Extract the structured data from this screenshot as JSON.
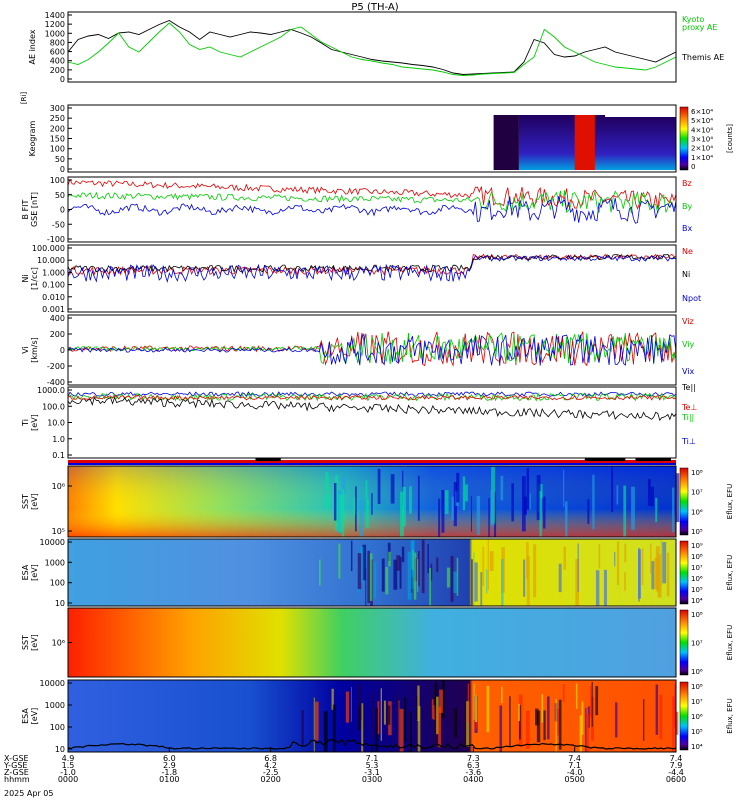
{
  "chart_data": {
    "type": "line",
    "title": "P5 (TH-A)",
    "date_label": "2025 Apr 05",
    "time_axis": {
      "row_labels": [
        "X-GSE",
        "Y-GSE",
        "Z-GSE",
        "hhmm"
      ],
      "ticks": [
        {
          "x_gse": "4.9",
          "y_gse": "1.5",
          "z_gse": "-1.0",
          "hhmm": "0000"
        },
        {
          "x_gse": "6.0",
          "y_gse": "2.9",
          "z_gse": "-1.8",
          "hhmm": "0100"
        },
        {
          "x_gse": "6.8",
          "y_gse": "4.2",
          "z_gse": "-2.5",
          "hhmm": "0200"
        },
        {
          "x_gse": "7.1",
          "y_gse": "5.3",
          "z_gse": "-3.1",
          "hhmm": "0300"
        },
        {
          "x_gse": "7.3",
          "y_gse": "6.3",
          "z_gse": "-3.6",
          "hhmm": "0400"
        },
        {
          "x_gse": "7.4",
          "y_gse": "7.1",
          "z_gse": "-4.0",
          "hhmm": "0500"
        },
        {
          "x_gse": "7.4",
          "y_gse": "7.9",
          "z_gse": "-4.4",
          "hhmm": "0600"
        }
      ]
    },
    "panels": [
      {
        "id": "ae",
        "ylabel": "AE index",
        "yticks": [
          "1400",
          "1200",
          "1000",
          "800",
          "600",
          "400",
          "200",
          "0"
        ],
        "ylim": [
          0,
          1400
        ],
        "legend": [
          {
            "name": "Kyoto",
            "color": "#00cc00"
          },
          {
            "name": "proxy AE",
            "color": "#00cc00"
          },
          {
            "name": "Themis AE",
            "color": "#000000"
          }
        ],
        "series": [
          {
            "name": "Themis AE",
            "color": "#000000",
            "x": [
              0.0,
              0.1,
              0.2,
              0.3,
              0.4,
              0.5,
              0.6,
              0.7,
              0.8,
              0.9,
              1.0,
              1.1,
              1.2,
              1.3,
              1.4,
              1.5,
              1.6,
              1.7,
              1.8,
              1.9,
              2.0,
              2.1,
              2.2,
              2.3,
              2.4,
              2.5,
              2.6,
              2.7,
              2.8,
              2.9,
              3.0,
              3.1,
              3.2,
              3.3,
              3.4,
              3.5,
              3.6,
              3.7,
              3.8,
              3.9,
              4.0,
              4.1,
              4.2,
              4.3,
              4.4,
              4.5,
              4.6,
              4.7,
              4.8,
              4.9,
              5.0,
              5.1,
              5.2,
              5.3,
              5.4,
              5.5,
              5.6,
              5.7,
              5.8,
              5.9,
              6.0
            ],
            "y": [
              600,
              850,
              920,
              950,
              870,
              980,
              1000,
              950,
              1050,
              1150,
              1230,
              1100,
              1000,
              850,
              1000,
              950,
              900,
              950,
              1000,
              980,
              950,
              1000,
              1050,
              980,
              900,
              780,
              650,
              600,
              550,
              500,
              450,
              420,
              400,
              380,
              350,
              330,
              300,
              250,
              180,
              150,
              160,
              170,
              180,
              190,
              200,
              400,
              850,
              780,
              550,
              500,
              520,
              600,
              650,
              700,
              600,
              550,
              500,
              450,
              400,
              500,
              600
            ]
          },
          {
            "name": "Kyoto proxy AE",
            "color": "#00cc00",
            "x": [
              0.0,
              0.1,
              0.2,
              0.3,
              0.4,
              0.5,
              0.6,
              0.7,
              0.8,
              0.9,
              1.0,
              1.1,
              1.2,
              1.3,
              1.4,
              1.5,
              1.6,
              1.7,
              1.8,
              1.9,
              2.0,
              2.1,
              2.2,
              2.3,
              2.4,
              2.5,
              2.6,
              2.7,
              2.8,
              2.9,
              3.0,
              3.1,
              3.2,
              3.3,
              3.4,
              3.5,
              3.6,
              3.7,
              3.8,
              3.9,
              4.0,
              4.1,
              4.2,
              4.3,
              4.4,
              4.5,
              4.6,
              4.7,
              4.8,
              4.9,
              5.0,
              5.1,
              5.2,
              5.3,
              5.4,
              5.5,
              5.6,
              5.7,
              5.8,
              5.9,
              6.0
            ],
            "y": [
              400,
              350,
              450,
              600,
              780,
              980,
              700,
              600,
              800,
              1000,
              1180,
              1000,
              750,
              650,
              700,
              600,
              550,
              500,
              600,
              700,
              800,
              900,
              1050,
              1100,
              950,
              800,
              700,
              600,
              500,
              450,
              420,
              380,
              350,
              300,
              280,
              260,
              240,
              200,
              150,
              130,
              140,
              160,
              170,
              180,
              190,
              350,
              500,
              1050,
              900,
              700,
              600,
              500,
              400,
              350,
              300,
              280,
              260,
              240,
              300,
              400,
              500
            ]
          }
        ]
      },
      {
        "id": "keogram",
        "ylabel": "Keogram",
        "yticks": [
          "300",
          "250",
          "200",
          "150",
          "100",
          "50",
          "0"
        ],
        "ylim": [
          0,
          300
        ],
        "extra_label": "[Ri]",
        "colorbar": {
          "label": "[counts]",
          "ticks": [
            "6×10⁴",
            "5×10⁴",
            "4×10⁴",
            "3×10⁴",
            "2×10⁴",
            "1×10⁴",
            "0"
          ]
        }
      },
      {
        "id": "bfield",
        "ylabel": "B FIT",
        "ylabel_sub": "GSE [nT]",
        "yticks": [
          "100",
          "50",
          "0",
          "-50",
          "-100"
        ],
        "ylim": [
          -100,
          100
        ],
        "legend": [
          {
            "name": "Bz",
            "color": "#e00000"
          },
          {
            "name": "By",
            "color": "#00cc00"
          },
          {
            "name": "Bx",
            "color": "#0000e0"
          }
        ]
      },
      {
        "id": "density",
        "ylabel": "Ni",
        "ylabel_sub": "[1/cc]",
        "yticks": [
          "100.000",
          "10.000",
          "1.000",
          "0.100",
          "0.010",
          "0.001"
        ],
        "scale": "log",
        "legend": [
          {
            "name": "Ne",
            "color": "#e00000"
          },
          {
            "name": "Ni",
            "color": "#000000"
          },
          {
            "name": "Npot",
            "color": "#0000e0"
          }
        ]
      },
      {
        "id": "velocity",
        "ylabel": "Vi",
        "ylabel_sub": "[km/s]",
        "yticks": [
          "400",
          "200",
          "0",
          "-200",
          "-400"
        ],
        "ylim": [
          -500,
          450
        ],
        "legend": [
          {
            "name": "Viz",
            "color": "#e00000"
          },
          {
            "name": "Viy",
            "color": "#00cc00"
          },
          {
            "name": "Vix",
            "color": "#0000e0"
          }
        ]
      },
      {
        "id": "temperature",
        "ylabel": "Ti",
        "ylabel_sub": "[eV]",
        "yticks": [
          "1000.0",
          "100.0",
          "10.0",
          "1.0",
          "0.1"
        ],
        "scale": "log",
        "legend": [
          {
            "name": "Te||",
            "color": "#000000"
          },
          {
            "name": "Te⊥",
            "color": "#e00000"
          },
          {
            "name": "Ti||",
            "color": "#00cc00"
          },
          {
            "name": "Ti⊥",
            "color": "#0000e0"
          }
        ]
      },
      {
        "id": "sst-e",
        "ylabel": "SST",
        "ylabel_sub": "[eV]",
        "yticks": [
          "10⁶",
          "10⁵"
        ],
        "colorbar": {
          "label": "Eflux, EFU",
          "ticks": [
            "10⁸",
            "10⁷",
            "10⁶",
            "10⁵"
          ]
        }
      },
      {
        "id": "esa-e",
        "ylabel": "ESA",
        "ylabel_sub": "[eV]",
        "yticks": [
          "10000",
          "1000",
          "100",
          "10"
        ],
        "colorbar": {
          "label": "Eflux, EFU",
          "ticks": [
            "10⁹",
            "10⁸",
            "10⁷",
            "10⁶",
            "10⁵",
            "10⁴"
          ]
        }
      },
      {
        "id": "sst-i",
        "ylabel": "SST",
        "ylabel_sub": "[eV]",
        "yticks": [
          "10⁶"
        ],
        "colorbar": {
          "label": "Eflux, EFU",
          "ticks": [
            "10⁸",
            "10⁷",
            "10⁶"
          ]
        }
      },
      {
        "id": "esa-i",
        "ylabel": "ESA",
        "ylabel_sub": "[eV]",
        "yticks": [
          "10000",
          "1000",
          "100",
          "10"
        ],
        "colorbar": {
          "label": "Eflux, EFU",
          "ticks": [
            "10⁸",
            "10⁷",
            "10⁶",
            "10⁵",
            "10⁴"
          ]
        }
      }
    ]
  }
}
